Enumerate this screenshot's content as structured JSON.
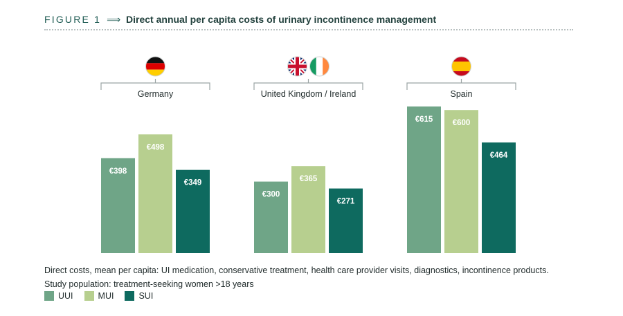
{
  "figure": {
    "label": "FIGURE 1",
    "arrow": "⟹",
    "title": "Direct annual per capita costs of urinary incontinence management"
  },
  "chart_data": {
    "type": "bar",
    "title": "Direct annual per capita costs of urinary incontinence management",
    "categories": [
      "Germany",
      "United Kingdom / Ireland",
      "Spain"
    ],
    "flags": [
      [
        "germany-flag"
      ],
      [
        "uk-flag",
        "ireland-flag"
      ],
      [
        "spain-flag"
      ]
    ],
    "series": [
      {
        "name": "UUI",
        "color": "#6fa587",
        "values": [
          398,
          300,
          615
        ],
        "labels": [
          "€398",
          "€300",
          "€615"
        ]
      },
      {
        "name": "MUI",
        "color": "#b7cf8f",
        "values": [
          498,
          365,
          600
        ],
        "labels": [
          "€498",
          "€365",
          "€600"
        ]
      },
      {
        "name": "SUI",
        "color": "#0e6a5f",
        "values": [
          349,
          271,
          464
        ],
        "labels": [
          "€349",
          "€271",
          "€464"
        ]
      }
    ],
    "ylim": [
      0,
      615
    ],
    "grid": false,
    "legend": "bottom-left"
  },
  "notes": {
    "line1": "Direct costs, mean per capita: UI medication, conservative treatment, health care provider visits, diagnostics, incontinence products.",
    "line2": "Study population: treatment-seeking women >18 years"
  },
  "legend": {
    "items": [
      {
        "label": "UUI",
        "color": "#6fa587"
      },
      {
        "label": "MUI",
        "color": "#b7cf8f"
      },
      {
        "label": "SUI",
        "color": "#0e6a5f"
      }
    ]
  }
}
